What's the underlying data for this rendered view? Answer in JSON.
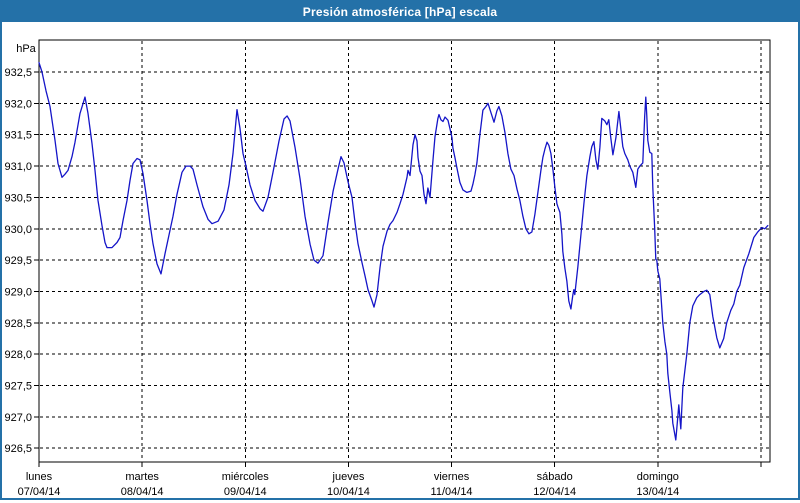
{
  "window": {
    "title": "Presión atmosférica [hPa] escala"
  },
  "colors": {
    "titlebar_bg": "#2471a8",
    "panel_border": "#2471a8",
    "plot_bg": "#ffffff",
    "grid": "#000000",
    "frame": "#000000",
    "line": "#1515c8",
    "label": "#000000"
  },
  "chart_data": {
    "type": "line",
    "title": "Presión atmosférica [hPa] escala",
    "y_unit": "hPa",
    "ylabel": "hPa",
    "xlabel": "",
    "ylim": [
      926.28,
      933.01
    ],
    "grid": {
      "horizontal": "dashed",
      "vertical": "dashed"
    },
    "legend": "none",
    "y_ticks": [
      {
        "value": 932.5,
        "label": "932,5"
      },
      {
        "value": 932.0,
        "label": "932,0"
      },
      {
        "value": 931.5,
        "label": "931,5"
      },
      {
        "value": 931.0,
        "label": "931,0"
      },
      {
        "value": 930.5,
        "label": "930,5"
      },
      {
        "value": 930.0,
        "label": "930,0"
      },
      {
        "value": 929.5,
        "label": "929,5"
      },
      {
        "value": 929.0,
        "label": "929,0"
      },
      {
        "value": 928.5,
        "label": "928,5"
      },
      {
        "value": 928.0,
        "label": "928,0"
      },
      {
        "value": 927.5,
        "label": "927,5"
      },
      {
        "value": 927.0,
        "label": "927,0"
      },
      {
        "value": 926.5,
        "label": "926,5"
      }
    ],
    "x_axis": {
      "unit": "days",
      "days": [
        {
          "name": "lunes",
          "date": "07/04/14"
        },
        {
          "name": "martes",
          "date": "08/04/14"
        },
        {
          "name": "miércoles",
          "date": "09/04/14"
        },
        {
          "name": "jueves",
          "date": "10/04/14"
        },
        {
          "name": "viernes",
          "date": "11/04/14"
        },
        {
          "name": "sábado",
          "date": "12/04/14"
        },
        {
          "name": "domingo",
          "date": "13/04/14"
        }
      ]
    },
    "series": [
      {
        "name": "presión atmosférica",
        "unit": "hPa",
        "x_unit": "days since 07/04/14 00:00",
        "points": [
          [
            0,
            932.65
          ],
          [
            0.029,
            932.5
          ],
          [
            0.068,
            932.2
          ],
          [
            0.107,
            931.95
          ],
          [
            0.155,
            931.41
          ],
          [
            0.184,
            931.04
          ],
          [
            0.223,
            930.82
          ],
          [
            0.252,
            930.87
          ],
          [
            0.281,
            930.93
          ],
          [
            0.32,
            931.15
          ],
          [
            0.349,
            931.38
          ],
          [
            0.398,
            931.84
          ],
          [
            0.446,
            932.1
          ],
          [
            0.475,
            931.84
          ],
          [
            0.514,
            931.36
          ],
          [
            0.543,
            930.93
          ],
          [
            0.572,
            930.45
          ],
          [
            0.611,
            930.05
          ],
          [
            0.64,
            929.78
          ],
          [
            0.659,
            929.7
          ],
          [
            0.708,
            929.7
          ],
          [
            0.756,
            929.78
          ],
          [
            0.785,
            929.86
          ],
          [
            0.814,
            930.13
          ],
          [
            0.853,
            930.45
          ],
          [
            0.882,
            930.77
          ],
          [
            0.911,
            931.04
          ],
          [
            0.95,
            931.12
          ],
          [
            0.979,
            931.1
          ],
          [
            1.008,
            930.88
          ],
          [
            1.047,
            930.45
          ],
          [
            1.076,
            930.08
          ],
          [
            1.105,
            929.76
          ],
          [
            1.144,
            929.44
          ],
          [
            1.183,
            929.28
          ],
          [
            1.222,
            929.6
          ],
          [
            1.26,
            929.9
          ],
          [
            1.299,
            930.2
          ],
          [
            1.338,
            930.55
          ],
          [
            1.386,
            930.9
          ],
          [
            1.425,
            931.0
          ],
          [
            1.464,
            931.0
          ],
          [
            1.493,
            930.95
          ],
          [
            1.532,
            930.7
          ],
          [
            1.59,
            930.35
          ],
          [
            1.639,
            930.15
          ],
          [
            1.677,
            930.08
          ],
          [
            1.736,
            930.12
          ],
          [
            1.794,
            930.3
          ],
          [
            1.842,
            930.7
          ],
          [
            1.881,
            931.2
          ],
          [
            1.92,
            931.9
          ],
          [
            1.949,
            931.6
          ],
          [
            1.978,
            931.2
          ],
          [
            2.007,
            931.0
          ],
          [
            2.046,
            930.7
          ],
          [
            2.094,
            930.45
          ],
          [
            2.143,
            930.32
          ],
          [
            2.172,
            930.28
          ],
          [
            2.22,
            930.5
          ],
          [
            2.269,
            930.9
          ],
          [
            2.327,
            931.4
          ],
          [
            2.375,
            931.75
          ],
          [
            2.405,
            931.8
          ],
          [
            2.434,
            931.72
          ],
          [
            2.482,
            931.3
          ],
          [
            2.531,
            930.8
          ],
          [
            2.579,
            930.2
          ],
          [
            2.628,
            929.75
          ],
          [
            2.666,
            929.5
          ],
          [
            2.705,
            929.45
          ],
          [
            2.754,
            929.57
          ],
          [
            2.802,
            930.1
          ],
          [
            2.851,
            930.6
          ],
          [
            2.899,
            930.95
          ],
          [
            2.928,
            931.15
          ],
          [
            2.957,
            931.05
          ],
          [
            2.996,
            930.75
          ],
          [
            3.035,
            930.5
          ],
          [
            3.064,
            930.1
          ],
          [
            3.093,
            929.76
          ],
          [
            3.132,
            929.46
          ],
          [
            3.161,
            929.25
          ],
          [
            3.19,
            929.03
          ],
          [
            3.229,
            928.85
          ],
          [
            3.248,
            928.75
          ],
          [
            3.277,
            928.95
          ],
          [
            3.306,
            929.38
          ],
          [
            3.335,
            929.72
          ],
          [
            3.374,
            929.96
          ],
          [
            3.403,
            930.07
          ],
          [
            3.432,
            930.13
          ],
          [
            3.471,
            930.26
          ],
          [
            3.5,
            930.4
          ],
          [
            3.529,
            930.55
          ],
          [
            3.568,
            930.82
          ],
          [
            3.578,
            930.93
          ],
          [
            3.597,
            930.85
          ],
          [
            3.626,
            931.34
          ],
          [
            3.646,
            931.5
          ],
          [
            3.665,
            931.4
          ],
          [
            3.675,
            931.14
          ],
          [
            3.694,
            930.92
          ],
          [
            3.713,
            930.85
          ],
          [
            3.733,
            930.55
          ],
          [
            3.752,
            930.4
          ],
          [
            3.771,
            930.65
          ],
          [
            3.791,
            930.5
          ],
          [
            3.82,
            931.1
          ],
          [
            3.839,
            931.47
          ],
          [
            3.868,
            931.76
          ],
          [
            3.878,
            931.82
          ],
          [
            3.897,
            931.74
          ],
          [
            3.917,
            931.71
          ],
          [
            3.936,
            931.78
          ],
          [
            3.965,
            931.73
          ],
          [
            3.984,
            931.6
          ],
          [
            4.004,
            931.45
          ],
          [
            4.013,
            931.29
          ],
          [
            4.033,
            931.13
          ],
          [
            4.052,
            930.97
          ],
          [
            4.081,
            930.74
          ],
          [
            4.11,
            930.62
          ],
          [
            4.149,
            930.58
          ],
          [
            4.188,
            930.6
          ],
          [
            4.207,
            930.71
          ],
          [
            4.227,
            930.87
          ],
          [
            4.246,
            931.05
          ],
          [
            4.275,
            931.5
          ],
          [
            4.304,
            931.89
          ],
          [
            4.333,
            931.95
          ],
          [
            4.353,
            932.0
          ],
          [
            4.382,
            931.85
          ],
          [
            4.411,
            931.7
          ],
          [
            4.44,
            931.88
          ],
          [
            4.459,
            931.95
          ],
          [
            4.488,
            931.8
          ],
          [
            4.517,
            931.54
          ],
          [
            4.546,
            931.2
          ],
          [
            4.575,
            930.95
          ],
          [
            4.605,
            930.85
          ],
          [
            4.634,
            930.63
          ],
          [
            4.663,
            930.45
          ],
          [
            4.692,
            930.2
          ],
          [
            4.721,
            930.0
          ],
          [
            4.75,
            929.92
          ],
          [
            4.779,
            929.95
          ],
          [
            4.808,
            930.23
          ],
          [
            4.837,
            930.58
          ],
          [
            4.866,
            930.93
          ],
          [
            4.886,
            931.14
          ],
          [
            4.905,
            931.27
          ],
          [
            4.925,
            931.38
          ],
          [
            4.944,
            931.33
          ],
          [
            4.963,
            931.2
          ],
          [
            4.983,
            930.95
          ],
          [
            5.002,
            930.66
          ],
          [
            5.021,
            930.4
          ],
          [
            5.031,
            930.35
          ],
          [
            5.05,
            930.26
          ],
          [
            5.07,
            929.91
          ],
          [
            5.079,
            929.64
          ],
          [
            5.099,
            929.37
          ],
          [
            5.118,
            929.16
          ],
          [
            5.137,
            928.85
          ],
          [
            5.157,
            928.72
          ],
          [
            5.176,
            928.95
          ],
          [
            5.186,
            929.03
          ],
          [
            5.195,
            928.95
          ],
          [
            5.225,
            929.4
          ],
          [
            5.254,
            929.9
          ],
          [
            5.283,
            930.4
          ],
          [
            5.312,
            930.85
          ],
          [
            5.341,
            931.15
          ],
          [
            5.36,
            931.31
          ],
          [
            5.38,
            931.39
          ],
          [
            5.399,
            931.1
          ],
          [
            5.418,
            930.95
          ],
          [
            5.438,
            931.3
          ],
          [
            5.457,
            931.76
          ],
          [
            5.486,
            931.72
          ],
          [
            5.506,
            931.66
          ],
          [
            5.525,
            931.74
          ],
          [
            5.544,
            931.45
          ],
          [
            5.564,
            931.18
          ],
          [
            5.593,
            931.45
          ],
          [
            5.622,
            931.87
          ],
          [
            5.641,
            931.6
          ],
          [
            5.66,
            931.31
          ],
          [
            5.68,
            931.2
          ],
          [
            5.709,
            931.1
          ],
          [
            5.728,
            931.0
          ],
          [
            5.757,
            930.9
          ],
          [
            5.786,
            930.66
          ],
          [
            5.806,
            930.95
          ],
          [
            5.825,
            931.0
          ],
          [
            5.854,
            931.05
          ],
          [
            5.873,
            931.8
          ],
          [
            5.883,
            932.1
          ],
          [
            5.893,
            931.8
          ],
          [
            5.903,
            931.41
          ],
          [
            5.922,
            931.22
          ],
          [
            5.941,
            931.2
          ],
          [
            5.951,
            930.66
          ],
          [
            5.97,
            930.0
          ],
          [
            5.98,
            929.51
          ],
          [
            5.99,
            929.5
          ],
          [
            6.0,
            929.33
          ],
          [
            6.019,
            929.2
          ],
          [
            6.048,
            928.5
          ],
          [
            6.068,
            928.2
          ],
          [
            6.087,
            928.0
          ],
          [
            6.097,
            927.7
          ],
          [
            6.116,
            927.4
          ],
          [
            6.136,
            927.1
          ],
          [
            6.145,
            926.9
          ],
          [
            6.174,
            926.63
          ],
          [
            6.194,
            927.0
          ],
          [
            6.203,
            927.19
          ],
          [
            6.223,
            926.81
          ],
          [
            6.242,
            927.46
          ],
          [
            6.281,
            928.0
          ],
          [
            6.31,
            928.5
          ],
          [
            6.339,
            928.77
          ],
          [
            6.378,
            928.9
          ],
          [
            6.407,
            928.95
          ],
          [
            6.446,
            929.0
          ],
          [
            6.475,
            929.02
          ],
          [
            6.504,
            928.95
          ],
          [
            6.533,
            928.6
          ],
          [
            6.572,
            928.26
          ],
          [
            6.601,
            928.1
          ],
          [
            6.639,
            928.25
          ],
          [
            6.668,
            928.5
          ],
          [
            6.707,
            928.7
          ],
          [
            6.736,
            928.8
          ],
          [
            6.765,
            929.0
          ],
          [
            6.795,
            929.1
          ],
          [
            6.833,
            929.38
          ],
          [
            6.882,
            929.6
          ],
          [
            6.93,
            929.86
          ],
          [
            6.969,
            929.95
          ],
          [
            7.008,
            930.02
          ],
          [
            7.037,
            930.0
          ],
          [
            7.066,
            930.05
          ]
        ]
      }
    ]
  }
}
